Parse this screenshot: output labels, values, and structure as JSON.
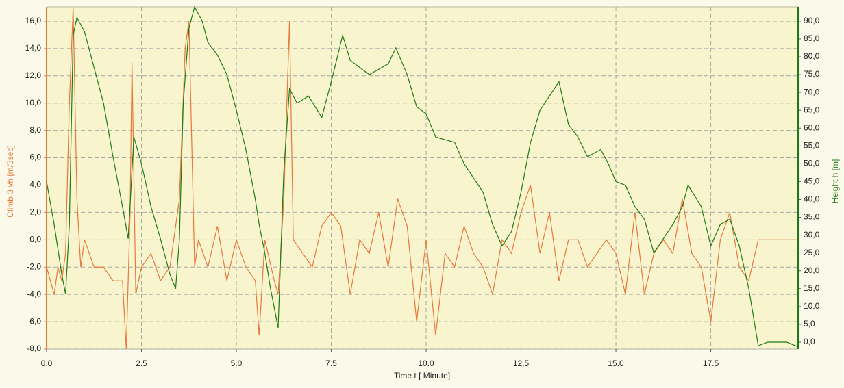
{
  "chart_data": {
    "type": "line",
    "x_label": "Time  t  [ Minute]",
    "y_label": "Climb 3  vh  [m/3sec]",
    "y2_label": "Height  h  [m]",
    "grid": true,
    "xlim": [
      0,
      19.8
    ],
    "xticks": [
      {
        "value": 0,
        "label": "0.0"
      },
      {
        "value": 2.5,
        "label": "2.5"
      },
      {
        "value": 5,
        "label": "5.0"
      },
      {
        "value": 7.5,
        "label": "7.5"
      },
      {
        "value": 10,
        "label": "10.0"
      },
      {
        "value": 12.5,
        "label": "12.5"
      },
      {
        "value": 15,
        "label": "15.0"
      },
      {
        "value": 17.5,
        "label": "17.5"
      }
    ],
    "ylim": [
      -8,
      17.05
    ],
    "yticks": [
      {
        "value": -8,
        "label": "-8,0"
      },
      {
        "value": -6,
        "label": "-6,0"
      },
      {
        "value": -4,
        "label": "-4,0"
      },
      {
        "value": -2,
        "label": "-2,0"
      },
      {
        "value": 0,
        "label": "0,0"
      },
      {
        "value": 2,
        "label": "2,0"
      },
      {
        "value": 4,
        "label": "4,0"
      },
      {
        "value": 6,
        "label": "6,0"
      },
      {
        "value": 8,
        "label": "8,0"
      },
      {
        "value": 10,
        "label": "10,0"
      },
      {
        "value": 12,
        "label": "12,0"
      },
      {
        "value": 14,
        "label": "14,0"
      },
      {
        "value": 16,
        "label": "16,0"
      }
    ],
    "y2lim": [
      -1.92,
      94.0
    ],
    "y2ticks": [
      {
        "value": 0,
        "label": "0,0"
      },
      {
        "value": 5,
        "label": "5,0"
      },
      {
        "value": 10,
        "label": "10,0"
      },
      {
        "value": 15,
        "label": "15,0"
      },
      {
        "value": 20,
        "label": "20,0"
      },
      {
        "value": 25,
        "label": "25,0"
      },
      {
        "value": 30,
        "label": "30,0"
      },
      {
        "value": 35,
        "label": "35,0"
      },
      {
        "value": 40,
        "label": "40,0"
      },
      {
        "value": 45,
        "label": "45,0"
      },
      {
        "value": 50,
        "label": "50,0"
      },
      {
        "value": 55,
        "label": "55,0"
      },
      {
        "value": 60,
        "label": "60,0"
      },
      {
        "value": 65,
        "label": "65,0"
      },
      {
        "value": 70,
        "label": "70,0"
      },
      {
        "value": 75,
        "label": "75,0"
      },
      {
        "value": 80,
        "label": "80,0"
      },
      {
        "value": 85,
        "label": "85,0"
      },
      {
        "value": 90,
        "label": "90,0"
      }
    ],
    "series": [
      {
        "name": "Climb 3 vh",
        "color": "#e8783c",
        "x": [
          0,
          0.1,
          0.2,
          0.3,
          0.4,
          0.5,
          0.6,
          0.7,
          0.8,
          0.9,
          1.0,
          1.25,
          1.5,
          1.75,
          2.0,
          2.1,
          2.2,
          2.25,
          2.35,
          2.5,
          2.75,
          3.0,
          3.25,
          3.5,
          3.65,
          3.75,
          3.9,
          4.0,
          4.25,
          4.5,
          4.75,
          5.0,
          5.25,
          5.5,
          5.6,
          5.75,
          6.0,
          6.1,
          6.25,
          6.4,
          6.5,
          6.75,
          7.0,
          7.25,
          7.5,
          7.75,
          8.0,
          8.25,
          8.5,
          8.75,
          9.0,
          9.25,
          9.5,
          9.75,
          10.0,
          10.25,
          10.5,
          10.75,
          11.0,
          11.25,
          11.5,
          11.75,
          12.0,
          12.25,
          12.5,
          12.75,
          13.0,
          13.25,
          13.5,
          13.75,
          14.0,
          14.25,
          14.5,
          14.75,
          15.0,
          15.25,
          15.5,
          15.75,
          16.0,
          16.25,
          16.5,
          16.75,
          17.0,
          17.25,
          17.5,
          17.75,
          18.0,
          18.25,
          18.5,
          18.75,
          19.0,
          19.25,
          19.5,
          19.8
        ],
        "values": [
          -2,
          -3,
          -4,
          -2,
          -3,
          -1,
          10,
          17,
          3,
          -2,
          0,
          -2,
          -2,
          -3,
          -3,
          -8,
          2,
          13,
          -4,
          -2,
          -1,
          -3,
          -2,
          3,
          14,
          16,
          -2,
          0,
          -2,
          1,
          -3,
          0,
          -2,
          -3,
          -7,
          0,
          -3,
          -4,
          3,
          16,
          0,
          -1,
          -2,
          1,
          2,
          1,
          -4,
          0,
          -1,
          2,
          -2,
          3,
          1,
          -6,
          0,
          -7,
          -1,
          -2,
          1,
          -1,
          -2,
          -4,
          0,
          -1,
          2,
          4,
          -1,
          2,
          -3,
          0,
          0,
          -2,
          -1,
          0,
          -1,
          -4,
          2,
          -4,
          -1,
          0,
          -1,
          3,
          -1,
          -2,
          -6,
          0,
          2,
          -2,
          -3,
          0,
          0,
          0,
          0,
          0
        ]
      },
      {
        "name": "Height h",
        "color": "#1e7a14",
        "axis": "y2",
        "x": [
          0,
          0.2,
          0.4,
          0.5,
          0.6,
          0.7,
          0.8,
          1.0,
          1.25,
          1.5,
          1.75,
          2.0,
          2.15,
          2.3,
          2.5,
          2.75,
          3.0,
          3.25,
          3.4,
          3.5,
          3.6,
          3.75,
          3.9,
          4.1,
          4.25,
          4.5,
          4.75,
          5.0,
          5.25,
          5.5,
          5.6,
          5.75,
          5.9,
          6.0,
          6.1,
          6.25,
          6.4,
          6.6,
          6.9,
          7.25,
          7.5,
          7.8,
          8.0,
          8.5,
          9.0,
          9.2,
          9.5,
          9.75,
          10.0,
          10.25,
          10.75,
          11.0,
          11.5,
          11.75,
          12.0,
          12.25,
          12.5,
          12.75,
          13.0,
          13.5,
          13.75,
          14.0,
          14.25,
          14.6,
          14.8,
          15.0,
          15.25,
          15.5,
          15.75,
          16.0,
          16.25,
          16.5,
          16.75,
          16.9,
          17.25,
          17.5,
          17.75,
          18.0,
          18.25,
          18.5,
          18.75,
          19.0,
          19.25,
          19.5,
          19.8
        ],
        "values": [
          45,
          33,
          19,
          13.5,
          33,
          86,
          91,
          87,
          77,
          67,
          52,
          38,
          29,
          57.5,
          50,
          38,
          29,
          19,
          15,
          29,
          67,
          88,
          94,
          90,
          84,
          80.5,
          75,
          65,
          54,
          40,
          33,
          25,
          15,
          9.6,
          4,
          48,
          71,
          67,
          69,
          63,
          73,
          86,
          79,
          75,
          78,
          82.5,
          75,
          66,
          64,
          57.5,
          56,
          50,
          42,
          33,
          27,
          31,
          42,
          56,
          65,
          73,
          61,
          57.5,
          52,
          54,
          50,
          45,
          44,
          38,
          34.5,
          25,
          29,
          33,
          38,
          44,
          38,
          27,
          33,
          34.5,
          27,
          15,
          -1,
          0,
          0,
          0,
          -1.3
        ]
      }
    ]
  }
}
